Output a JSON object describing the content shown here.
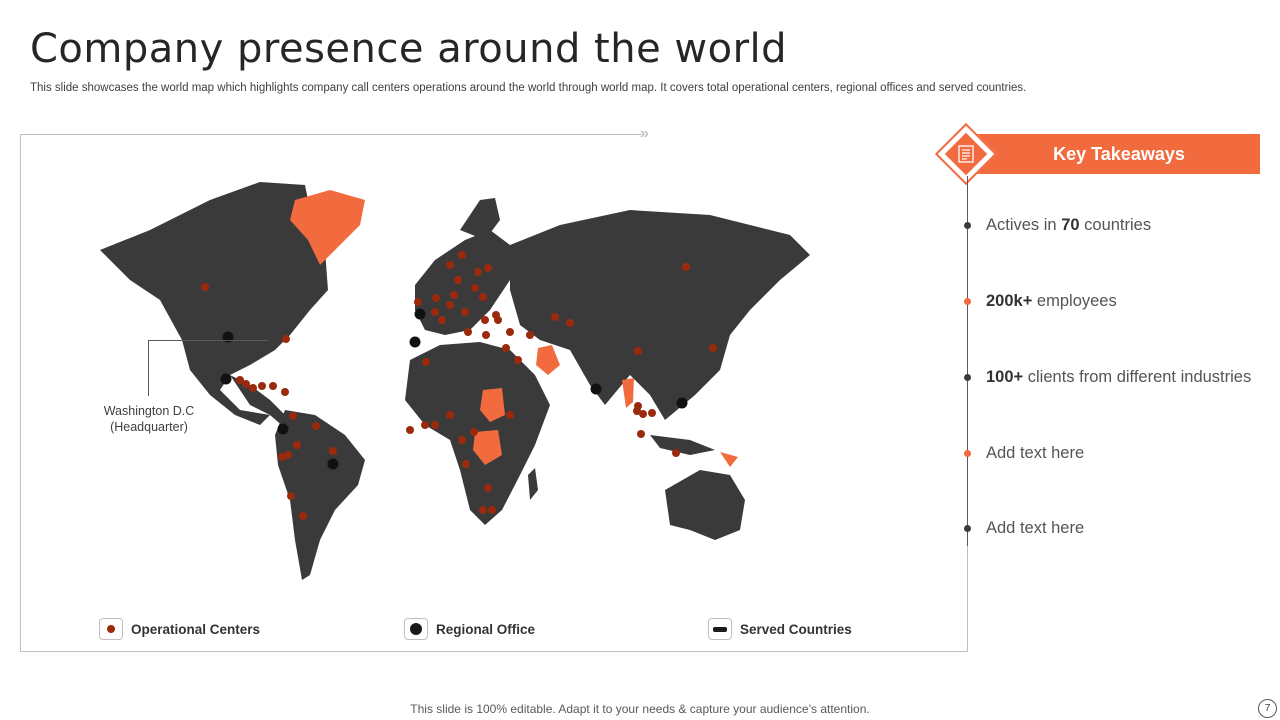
{
  "title": "Company presence around the world",
  "subtitle": "This slide showcases the world map which highlights company call centers operations around the world through world map. It covers total operational centers, regional offices and served countries.",
  "map": {
    "hq_label_line1": "Washington D.C",
    "hq_label_line2": "(Headquarter)",
    "colors": {
      "land": "#3a3a3a",
      "served": "#f26b3f",
      "operational": "#9b2a0c",
      "regional": "#111111"
    }
  },
  "legend": {
    "operational": "Operational Centers",
    "regional": "Regional Office",
    "served": "Served Countries"
  },
  "key_takeaways": {
    "title": "Key Takeaways",
    "items": [
      {
        "bold": "",
        "pre": "Actives in ",
        "bold_mid": "70",
        "post": " countries"
      },
      {
        "bold": "200k+",
        "pre": "",
        "bold_mid": "",
        "post": " employees"
      },
      {
        "bold": "100+",
        "pre": "",
        "bold_mid": "",
        "post": " clients from different industries"
      },
      {
        "bold": "",
        "pre": "Add text here",
        "bold_mid": "",
        "post": ""
      },
      {
        "bold": "",
        "pre": "Add text here",
        "bold_mid": "",
        "post": ""
      }
    ]
  },
  "footer": "This slide is 100% editable. Adapt it to your needs & capture your audience’s attention.",
  "page_number": "7"
}
